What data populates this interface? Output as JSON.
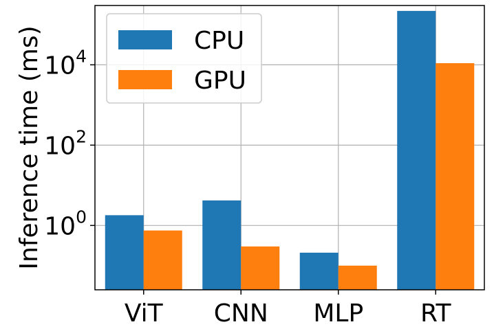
{
  "chart_data": {
    "type": "bar",
    "title": "",
    "xlabel": "",
    "ylabel": "Inference time (ms)",
    "yscale": "log",
    "ylim": [
      0.025,
      300000
    ],
    "yticks": [
      {
        "value": 1,
        "base": "10",
        "exp": "0"
      },
      {
        "value": 100,
        "base": "10",
        "exp": "2"
      },
      {
        "value": 10000,
        "base": "10",
        "exp": "4"
      }
    ],
    "categories": [
      "ViT",
      "CNN",
      "MLP",
      "RT"
    ],
    "series": [
      {
        "name": "CPU",
        "color": "#1f77b4",
        "values": [
          1.8,
          4.2,
          0.21,
          220000
        ]
      },
      {
        "name": "GPU",
        "color": "#ff7f0e",
        "values": [
          0.75,
          0.3,
          0.1,
          11000
        ]
      }
    ],
    "grid": true,
    "legend": "top-left"
  }
}
